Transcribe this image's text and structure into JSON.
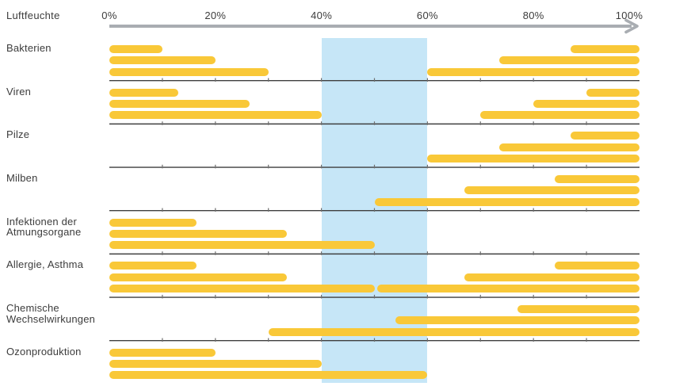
{
  "header": {
    "axis_title": "Luftfeuchte"
  },
  "axis": {
    "tick_labels": [
      "0%",
      "20%",
      "40%",
      "60%",
      "80%",
      "100%"
    ],
    "tick_values": [
      0,
      20,
      40,
      60,
      80,
      100
    ],
    "minor_tick_step_pct": 10
  },
  "optimal_band": {
    "from_pct": 40,
    "to_pct": 60
  },
  "colors": {
    "bar": "#f9c838",
    "band": "#c6e6f7",
    "axis_arrow": "#a9adb2",
    "separator": "#3f3f3f",
    "tick_notch": "#6e6e6e",
    "text": "#3c3c3c"
  },
  "chart_data": {
    "type": "bar",
    "title": "Luftfeuchte",
    "xlabel": "Luftfeuchte",
    "x_unit": "%",
    "xlim": [
      0,
      100
    ],
    "grid": false,
    "highlight_band": [
      40,
      60
    ],
    "note": "Horizontal range bars per category; each category has 3 stacked rows; values are % relative humidity",
    "categories": [
      {
        "label_lines": [
          "Bakterien"
        ],
        "rows": [
          [
            [
              0,
              10
            ],
            [
              87,
              100
            ]
          ],
          [
            [
              0,
              20
            ],
            [
              73.5,
              100
            ]
          ],
          [
            [
              0,
              30
            ],
            [
              60,
              100
            ]
          ]
        ]
      },
      {
        "label_lines": [
          "Viren"
        ],
        "rows": [
          [
            [
              0,
              13
            ],
            [
              90,
              100
            ]
          ],
          [
            [
              0,
              26.5
            ],
            [
              80,
              100
            ]
          ],
          [
            [
              0,
              40
            ],
            [
              70,
              100
            ]
          ]
        ]
      },
      {
        "label_lines": [
          "Pilze"
        ],
        "rows": [
          [
            [
              87,
              100
            ]
          ],
          [
            [
              73.5,
              100
            ]
          ],
          [
            [
              60,
              100
            ]
          ]
        ]
      },
      {
        "label_lines": [
          "Milben"
        ],
        "rows": [
          [
            [
              84,
              100
            ]
          ],
          [
            [
              67,
              100
            ]
          ],
          [
            [
              50,
              100
            ]
          ]
        ]
      },
      {
        "label_lines": [
          "Infektionen der",
          "Atmungsorgane"
        ],
        "rows": [
          [
            [
              0,
              16.5
            ]
          ],
          [
            [
              0,
              33.5
            ]
          ],
          [
            [
              0,
              50
            ]
          ]
        ]
      },
      {
        "label_lines": [
          "Allergie, Asthma"
        ],
        "rows": [
          [
            [
              0,
              16.5
            ],
            [
              84,
              100
            ]
          ],
          [
            [
              0,
              33.5
            ],
            [
              67,
              100
            ]
          ],
          [
            [
              0,
              50
            ],
            [
              50.5,
              100
            ]
          ]
        ]
      },
      {
        "label_lines": [
          "Chemische",
          "Wechselwirkungen"
        ],
        "rows": [
          [
            [
              77,
              100
            ]
          ],
          [
            [
              54,
              100
            ]
          ],
          [
            [
              30,
              100
            ]
          ]
        ]
      },
      {
        "label_lines": [
          "Ozonproduktion"
        ],
        "rows": [
          [
            [
              0,
              20
            ]
          ],
          [
            [
              0,
              40
            ]
          ],
          [
            [
              0,
              60
            ]
          ]
        ]
      }
    ]
  }
}
